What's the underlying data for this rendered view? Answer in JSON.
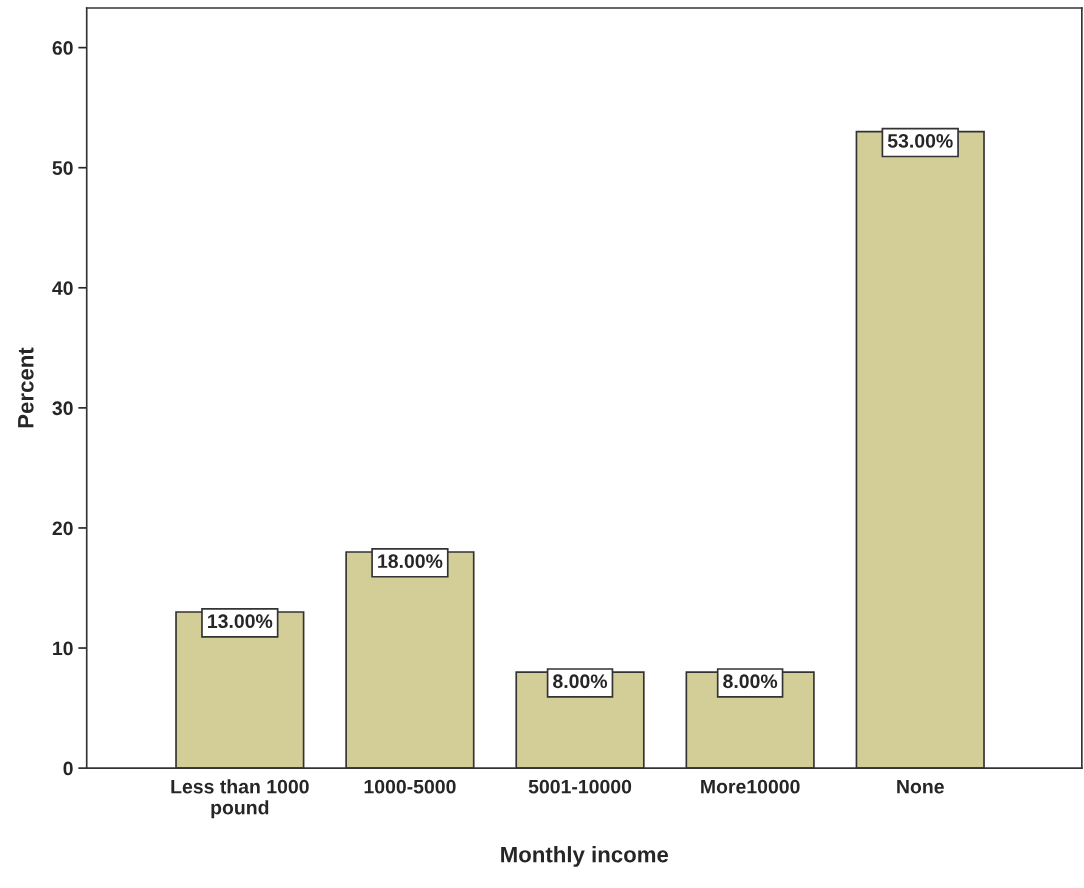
{
  "chart_data": {
    "type": "bar",
    "xlabel": "Monthly income",
    "ylabel": "Percent",
    "categories": [
      "Less than 1000\npound",
      "1000-5000",
      "5001-10000",
      "More10000",
      "None"
    ],
    "values": [
      13,
      18,
      8,
      8,
      53
    ],
    "value_labels": [
      "13.00%",
      "18.00%",
      "8.00%",
      "8.00%",
      "53.00%"
    ],
    "color": "#d3ce97",
    "ylim": [
      0,
      63.3
    ],
    "yticks": [
      0,
      10,
      20,
      30,
      40,
      50,
      60
    ],
    "grid": false
  }
}
